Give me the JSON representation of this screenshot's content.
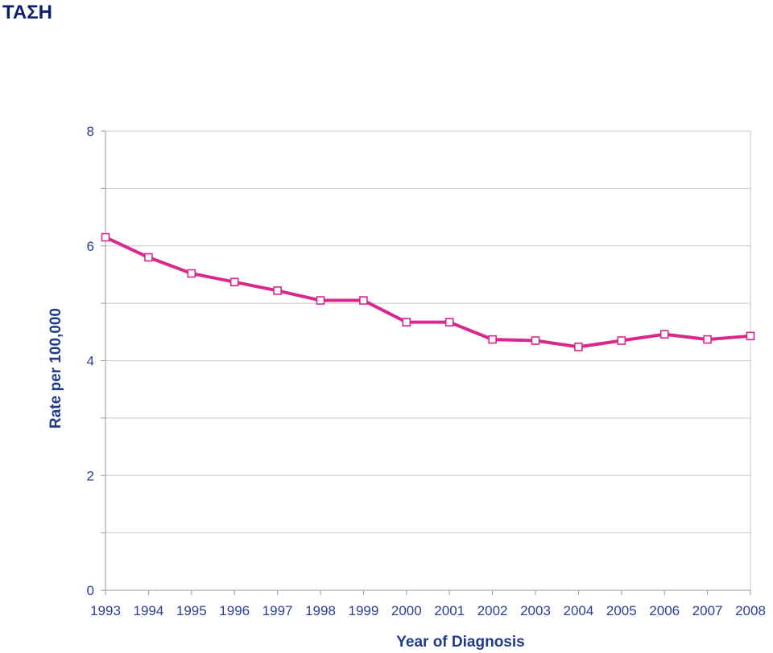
{
  "header": {
    "title": "ΤΑΣΗ"
  },
  "chart_data": {
    "type": "line",
    "title": "",
    "xlabel": "Year of Diagnosis",
    "ylabel": "Rate per 100,000",
    "x": [
      1993,
      1994,
      1995,
      1996,
      1997,
      1998,
      1999,
      2000,
      2001,
      2002,
      2003,
      2004,
      2005,
      2006,
      2007,
      2008
    ],
    "x_tick_labels": [
      "1993",
      "1994",
      "1995",
      "1996",
      "1997",
      "1998",
      "1999",
      "2000",
      "2001",
      "2002",
      "2003",
      "2004",
      "2005",
      "2006",
      "2007",
      "2008"
    ],
    "series": [
      {
        "values": [
          6.15,
          5.8,
          5.52,
          5.37,
          5.22,
          5.05,
          5.05,
          4.67,
          4.67,
          4.37,
          4.35,
          4.24,
          4.35,
          4.46,
          4.37,
          4.43
        ],
        "color": "#d9278c",
        "marker": "open-square"
      }
    ],
    "ylim": [
      0,
      8
    ],
    "y_tick_labels": [
      "0",
      "2",
      "4",
      "6",
      "8"
    ],
    "grid": true
  }
}
